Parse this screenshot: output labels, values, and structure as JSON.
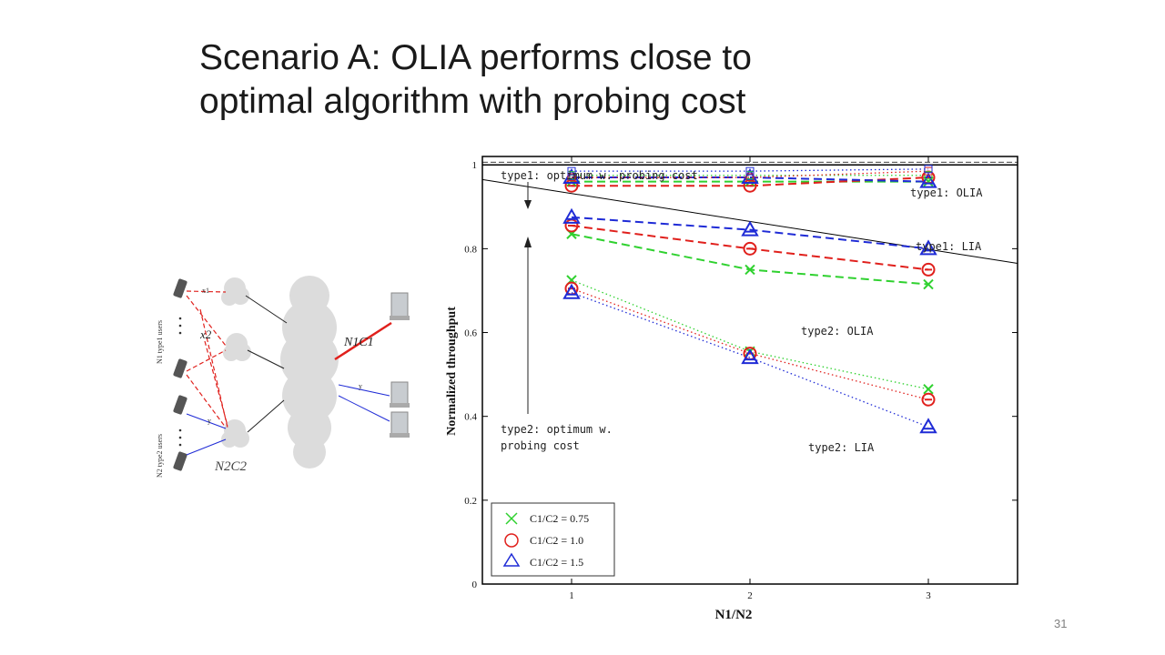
{
  "slide": {
    "title_line1": "Scenario A: OLIA performs close to",
    "title_line2": "optimal algorithm with probing cost",
    "page_number": "31"
  },
  "diagram": {
    "type1_label": "N1 type1 users",
    "type2_label": "N2 type2 users",
    "x1_label": "x1",
    "x2_label": "x2",
    "y_label": "y",
    "y_label_right": "y",
    "n1c1_label": "N1C1",
    "n2c2_label": "N2C2"
  },
  "chart_data": {
    "type": "line",
    "xlabel": "N1/N2",
    "ylabel": "Normalized throughput",
    "x": [
      1,
      2,
      3
    ],
    "xlim": [
      0.5,
      3.5
    ],
    "ylim": [
      0,
      1.02
    ],
    "xticks": [
      "1",
      "2",
      "3"
    ],
    "yticks": [
      "0",
      "0.2",
      "0.4",
      "0.6",
      "0.8",
      "1"
    ],
    "colors": {
      "green": "#2fd12f",
      "red": "#e0201c",
      "blue": "#1f2bd6"
    },
    "reference_lines": [
      {
        "name": "type1: optimum w. probing cost",
        "y_start": 1.0,
        "y_end": 1.0
      },
      {
        "name": "type2: optimum w. probing cost",
        "y_start": 0.965,
        "y_end": 0.765
      }
    ],
    "series": [
      {
        "group": "type1 OLIA",
        "ratio": "0.75",
        "style": "dashed",
        "values": [
          0.96,
          0.96,
          0.96
        ]
      },
      {
        "group": "type1 OLIA",
        "ratio": "1.0",
        "style": "dashed",
        "values": [
          0.95,
          0.95,
          0.97
        ]
      },
      {
        "group": "type1 OLIA",
        "ratio": "1.5",
        "style": "dashed",
        "values": [
          0.97,
          0.97,
          0.96
        ]
      },
      {
        "group": "type1 LIA",
        "ratio": "0.75",
        "style": "dotted",
        "values": [
          0.975,
          0.975,
          0.975
        ]
      },
      {
        "group": "type1 LIA",
        "ratio": "1.0",
        "style": "dotted",
        "values": [
          0.97,
          0.97,
          0.985
        ]
      },
      {
        "group": "type1 LIA",
        "ratio": "1.5",
        "style": "dotted",
        "values": [
          0.985,
          0.985,
          0.99
        ]
      },
      {
        "group": "type2 OLIA",
        "ratio": "0.75",
        "style": "dashed",
        "values": [
          0.835,
          0.75,
          0.715
        ]
      },
      {
        "group": "type2 OLIA",
        "ratio": "1.0",
        "style": "dashed",
        "values": [
          0.855,
          0.8,
          0.75
        ]
      },
      {
        "group": "type2 OLIA",
        "ratio": "1.5",
        "style": "dashed",
        "values": [
          0.875,
          0.845,
          0.8
        ]
      },
      {
        "group": "type2 LIA",
        "ratio": "0.75",
        "style": "dotted",
        "values": [
          0.725,
          0.555,
          0.465
        ]
      },
      {
        "group": "type2 LIA",
        "ratio": "1.0",
        "style": "dotted",
        "values": [
          0.705,
          0.55,
          0.44
        ]
      },
      {
        "group": "type2 LIA",
        "ratio": "1.5",
        "style": "dotted",
        "values": [
          0.695,
          0.54,
          0.375
        ]
      }
    ],
    "annotations": {
      "type1_opt": "type1: optimum w. probing cost",
      "type1_olia": "type1: OLIA",
      "type1_lia": "type1: LIA",
      "type2_olia": "type2: OLIA",
      "type2_lia": "type2: LIA",
      "type2_opt_line1": "type2: optimum w.",
      "type2_opt_line2": "probing cost"
    },
    "legend": {
      "placement": "bottom-left",
      "entries": [
        {
          "label": "C1/C2 = 0.75",
          "marker": "x",
          "color": "green"
        },
        {
          "label": "C1/C2 = 1.0",
          "marker": "circle",
          "color": "red"
        },
        {
          "label": "C1/C2 = 1.5",
          "marker": "triangle",
          "color": "blue"
        }
      ]
    }
  }
}
